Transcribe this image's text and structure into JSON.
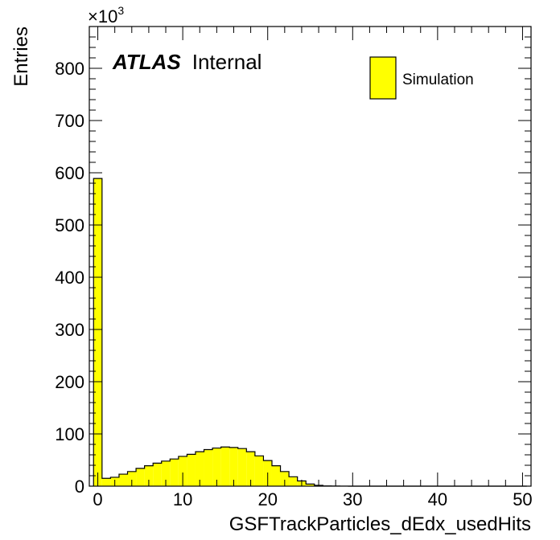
{
  "chart_data": {
    "type": "bar",
    "histogram": true,
    "xlabel": "GSFTrackParticles_dEdx_usedHits",
    "ylabel": "Entries",
    "y_multiplier_label": "×10",
    "y_multiplier_exp": "3",
    "xlim": [
      -1,
      51
    ],
    "ylim": [
      0,
      880
    ],
    "x_ticks": [
      0,
      10,
      20,
      30,
      40,
      50
    ],
    "y_ticks": [
      0,
      100,
      200,
      300,
      400,
      500,
      600,
      700,
      800
    ],
    "bin_edges_start": -0.5,
    "bin_width": 1,
    "values": [
      589,
      15,
      17,
      23,
      28,
      34,
      39,
      44,
      48,
      52,
      57,
      61,
      66,
      70,
      73,
      75,
      74,
      72,
      66,
      58,
      49,
      39,
      28,
      18,
      10,
      4,
      1.5,
      0.5,
      0.2,
      0.1,
      0,
      0,
      0,
      0,
      0,
      0,
      0,
      0,
      0,
      0,
      0,
      0,
      0,
      0,
      0,
      0,
      0,
      0,
      0,
      0,
      0
    ],
    "fill_color": "#ffff00",
    "line_color": "#000000",
    "legend": [
      {
        "name": "Simulation",
        "color": "#ffff00"
      }
    ],
    "legend_position": "top-right"
  },
  "atlas_label": {
    "bold": "ATLAS",
    "text": "Internal"
  }
}
